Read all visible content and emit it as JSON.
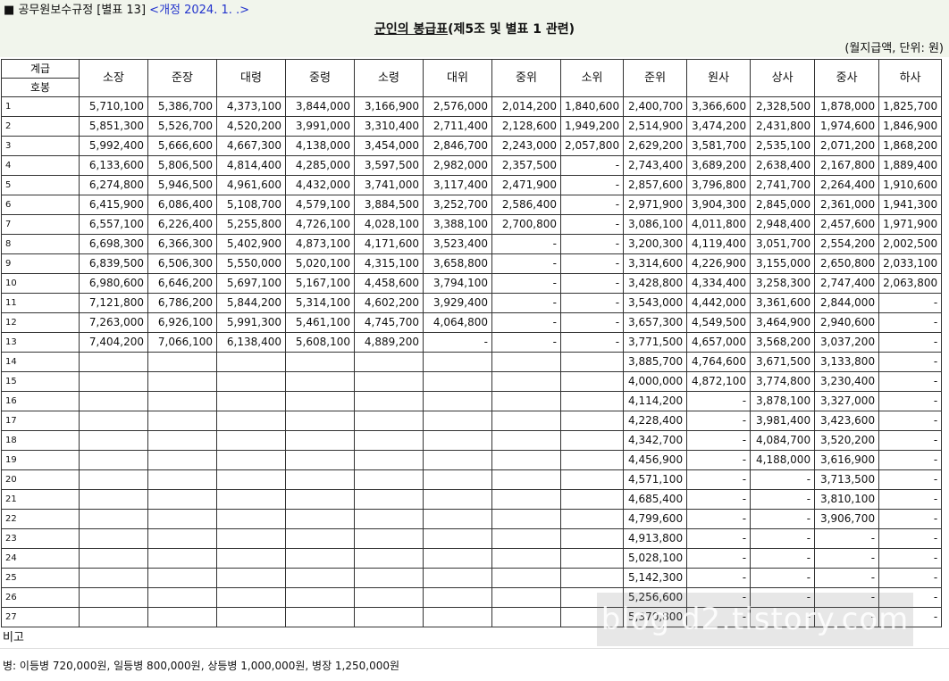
{
  "header": {
    "bullet": "■",
    "regulation": "공무원보수규정 [별표 13]",
    "revision_link": "<개정 2024. 1. .>",
    "title_underlined": "군인의 봉급표",
    "title_rest": "(제5조 및 별표 1 관련)",
    "unit": "(월지급액, 단위: 원)"
  },
  "table": {
    "corner_top": "계급",
    "corner_bottom": "호봉",
    "ranks": [
      "소장",
      "준장",
      "대령",
      "중령",
      "소령",
      "대위",
      "중위",
      "소위",
      "준위",
      "원사",
      "상사",
      "중사",
      "하사"
    ],
    "rows": [
      [
        "1",
        "5,710,100",
        "5,386,700",
        "4,373,100",
        "3,844,000",
        "3,166,900",
        "2,576,000",
        "2,014,200",
        "1,840,600",
        "2,400,700",
        "3,366,600",
        "2,328,500",
        "1,878,000",
        "1,825,700"
      ],
      [
        "2",
        "5,851,300",
        "5,526,700",
        "4,520,200",
        "3,991,000",
        "3,310,400",
        "2,711,400",
        "2,128,600",
        "1,949,200",
        "2,514,900",
        "3,474,200",
        "2,431,800",
        "1,974,600",
        "1,846,900"
      ],
      [
        "3",
        "5,992,400",
        "5,666,600",
        "4,667,300",
        "4,138,000",
        "3,454,000",
        "2,846,700",
        "2,243,000",
        "2,057,800",
        "2,629,200",
        "3,581,700",
        "2,535,100",
        "2,071,200",
        "1,868,200"
      ],
      [
        "4",
        "6,133,600",
        "5,806,500",
        "4,814,400",
        "4,285,000",
        "3,597,500",
        "2,982,000",
        "2,357,500",
        "-",
        "2,743,400",
        "3,689,200",
        "2,638,400",
        "2,167,800",
        "1,889,400"
      ],
      [
        "5",
        "6,274,800",
        "5,946,500",
        "4,961,600",
        "4,432,000",
        "3,741,000",
        "3,117,400",
        "2,471,900",
        "-",
        "2,857,600",
        "3,796,800",
        "2,741,700",
        "2,264,400",
        "1,910,600"
      ],
      [
        "6",
        "6,415,900",
        "6,086,400",
        "5,108,700",
        "4,579,100",
        "3,884,500",
        "3,252,700",
        "2,586,400",
        "-",
        "2,971,900",
        "3,904,300",
        "2,845,000",
        "2,361,000",
        "1,941,300"
      ],
      [
        "7",
        "6,557,100",
        "6,226,400",
        "5,255,800",
        "4,726,100",
        "4,028,100",
        "3,388,100",
        "2,700,800",
        "-",
        "3,086,100",
        "4,011,800",
        "2,948,400",
        "2,457,600",
        "1,971,900"
      ],
      [
        "8",
        "6,698,300",
        "6,366,300",
        "5,402,900",
        "4,873,100",
        "4,171,600",
        "3,523,400",
        "-",
        "-",
        "3,200,300",
        "4,119,400",
        "3,051,700",
        "2,554,200",
        "2,002,500"
      ],
      [
        "9",
        "6,839,500",
        "6,506,300",
        "5,550,000",
        "5,020,100",
        "4,315,100",
        "3,658,800",
        "-",
        "-",
        "3,314,600",
        "4,226,900",
        "3,155,000",
        "2,650,800",
        "2,033,100"
      ],
      [
        "10",
        "6,980,600",
        "6,646,200",
        "5,697,100",
        "5,167,100",
        "4,458,600",
        "3,794,100",
        "-",
        "-",
        "3,428,800",
        "4,334,400",
        "3,258,300",
        "2,747,400",
        "2,063,800"
      ],
      [
        "11",
        "7,121,800",
        "6,786,200",
        "5,844,200",
        "5,314,100",
        "4,602,200",
        "3,929,400",
        "-",
        "-",
        "3,543,000",
        "4,442,000",
        "3,361,600",
        "2,844,000",
        "-"
      ],
      [
        "12",
        "7,263,000",
        "6,926,100",
        "5,991,300",
        "5,461,100",
        "4,745,700",
        "4,064,800",
        "-",
        "-",
        "3,657,300",
        "4,549,500",
        "3,464,900",
        "2,940,600",
        "-"
      ],
      [
        "13",
        "7,404,200",
        "7,066,100",
        "6,138,400",
        "5,608,100",
        "4,889,200",
        "-",
        "-",
        "-",
        "3,771,500",
        "4,657,000",
        "3,568,200",
        "3,037,200",
        "-"
      ],
      [
        "14",
        "",
        "",
        "",
        "",
        "",
        "",
        "",
        "",
        "3,885,700",
        "4,764,600",
        "3,671,500",
        "3,133,800",
        "-"
      ],
      [
        "15",
        "",
        "",
        "",
        "",
        "",
        "",
        "",
        "",
        "4,000,000",
        "4,872,100",
        "3,774,800",
        "3,230,400",
        "-"
      ],
      [
        "16",
        "",
        "",
        "",
        "",
        "",
        "",
        "",
        "",
        "4,114,200",
        "-",
        "3,878,100",
        "3,327,000",
        "-"
      ],
      [
        "17",
        "",
        "",
        "",
        "",
        "",
        "",
        "",
        "",
        "4,228,400",
        "-",
        "3,981,400",
        "3,423,600",
        "-"
      ],
      [
        "18",
        "",
        "",
        "",
        "",
        "",
        "",
        "",
        "",
        "4,342,700",
        "-",
        "4,084,700",
        "3,520,200",
        "-"
      ],
      [
        "19",
        "",
        "",
        "",
        "",
        "",
        "",
        "",
        "",
        "4,456,900",
        "-",
        "4,188,000",
        "3,616,900",
        "-"
      ],
      [
        "20",
        "",
        "",
        "",
        "",
        "",
        "",
        "",
        "",
        "4,571,100",
        "-",
        "-",
        "3,713,500",
        "-"
      ],
      [
        "21",
        "",
        "",
        "",
        "",
        "",
        "",
        "",
        "",
        "4,685,400",
        "-",
        "-",
        "3,810,100",
        "-"
      ],
      [
        "22",
        "",
        "",
        "",
        "",
        "",
        "",
        "",
        "",
        "4,799,600",
        "-",
        "-",
        "3,906,700",
        "-"
      ],
      [
        "23",
        "",
        "",
        "",
        "",
        "",
        "",
        "",
        "",
        "4,913,800",
        "-",
        "-",
        "-",
        "-"
      ],
      [
        "24",
        "",
        "",
        "",
        "",
        "",
        "",
        "",
        "",
        "5,028,100",
        "-",
        "-",
        "-",
        "-"
      ],
      [
        "25",
        "",
        "",
        "",
        "",
        "",
        "",
        "",
        "",
        "5,142,300",
        "-",
        "-",
        "-",
        "-"
      ],
      [
        "26",
        "",
        "",
        "",
        "",
        "",
        "",
        "",
        "",
        "5,256,600",
        "-",
        "-",
        "-",
        "-"
      ],
      [
        "27",
        "",
        "",
        "",
        "",
        "",
        "",
        "",
        "",
        "5,370,800",
        "-",
        "-",
        "-",
        "-"
      ]
    ]
  },
  "notes": {
    "label": "비고",
    "text": "병: 이등병 720,000원, 일등병 800,000원, 상등병 1,000,000원, 병장 1,250,000원"
  },
  "watermark": "blog d2.tistory.com"
}
